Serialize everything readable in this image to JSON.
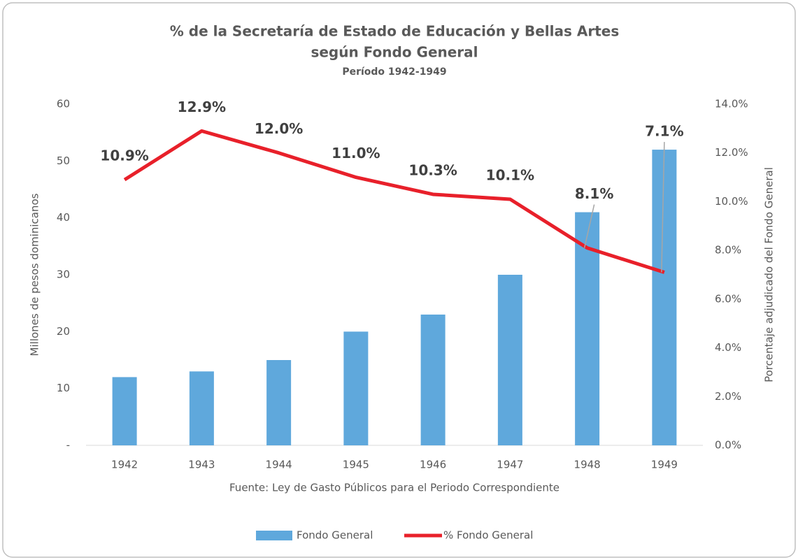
{
  "chart_data": {
    "type": "bar_line",
    "title": "% de la Secretaría de Estado de Educación y Bellas Artes",
    "title_line2": "según Fondo General",
    "subtitle": "Período 1942-1949",
    "annotation": "Fuente: Ley de Gasto Públicos para el Periodo Correspondiente",
    "y_label": "Millones de pesos dominicanos",
    "y2_label": "Porcentaje adjudicado del Fondo General",
    "categories": [
      "1942",
      "1943",
      "1944",
      "1945",
      "1946",
      "1947",
      "1948",
      "1949"
    ],
    "series": [
      {
        "name": "Fondo General",
        "type": "bar",
        "color": "#5fa8dc",
        "values": [
          12,
          13,
          15,
          20,
          23,
          30,
          41,
          52
        ]
      },
      {
        "name": "% Fondo General",
        "type": "line",
        "axis": "y2",
        "color": "#e8202a",
        "values": [
          10.9,
          12.9,
          12.0,
          11.0,
          10.3,
          10.1,
          8.1,
          7.1
        ],
        "value_labels": [
          "10.9%",
          "12.9%",
          "12.0%",
          "11.0%",
          "10.3%",
          "10.1%",
          "8.1%",
          "7.1%"
        ]
      }
    ],
    "ylim": [
      0,
      60
    ],
    "yticks": [
      {
        "value": 0,
        "label": "-"
      },
      10,
      20,
      30,
      40,
      50,
      60
    ],
    "y2lim": [
      0,
      14
    ],
    "y2ticks": [
      {
        "value": 0,
        "label": "0.0%"
      },
      {
        "value": 2,
        "label": "2.0%"
      },
      {
        "value": 4,
        "label": "4.0%"
      },
      {
        "value": 6,
        "label": "6.0%"
      },
      {
        "value": 8,
        "label": "8.0%"
      },
      {
        "value": 10,
        "label": "10.0%"
      },
      {
        "value": 12,
        "label": "12.0%"
      },
      {
        "value": 14,
        "label": "14.0%"
      }
    ],
    "legend": "bottom"
  }
}
